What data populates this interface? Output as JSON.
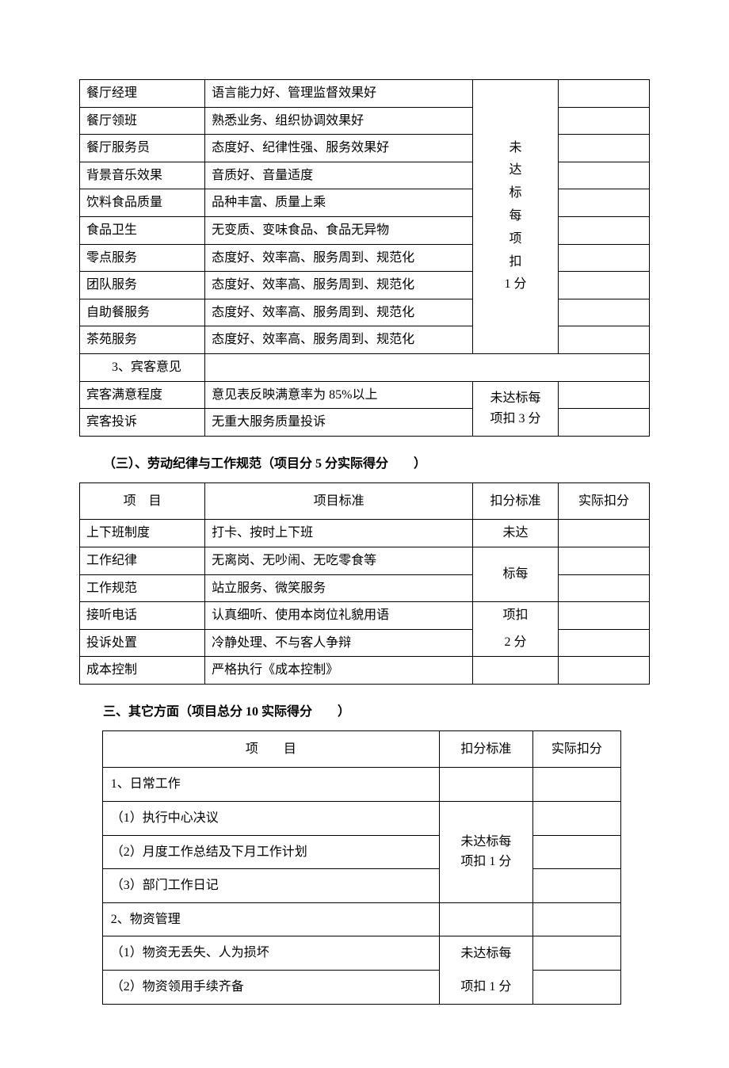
{
  "table1": {
    "rows": [
      {
        "item": "餐厅经理",
        "standard": "语言能力好、管理监督效果好"
      },
      {
        "item": "餐厅领班",
        "standard": "熟悉业务、组织协调效果好"
      },
      {
        "item": "餐厅服务员",
        "standard": "态度好、纪律性强、服务效果好"
      },
      {
        "item": "背景音乐效果",
        "standard": "音质好、音量适度"
      },
      {
        "item": "饮料食品质量",
        "standard": "品种丰富、质量上乘"
      },
      {
        "item": "食品卫生",
        "standard": "无变质、变味食品、食品无异物"
      },
      {
        "item": "零点服务",
        "standard": "态度好、效率高、服务周到、规范化"
      },
      {
        "item": "团队服务",
        "standard": "态度好、效率高、服务周到、规范化"
      },
      {
        "item": "自助餐服务",
        "standard": "态度好、效率高、服务周到、规范化"
      },
      {
        "item": "茶苑服务",
        "standard": "态度好、效率高、服务周到、规范化"
      }
    ],
    "deduct1": "未\n达\n标\n每\n项\n扣\n1 分",
    "section_row": "3、宾客意见",
    "rows2": [
      {
        "item": "宾客满意程度",
        "standard": "意见表反映满意率为 85%以上"
      },
      {
        "item": "宾客投诉",
        "standard": "无重大服务质量投诉"
      }
    ],
    "deduct2": "未达标每\n项扣 3 分"
  },
  "section2": {
    "title": "（三）、劳动纪律与工作规范（项目分 5 分实际得分　　）",
    "headers": {
      "item": "项　目",
      "standard": "项目标准",
      "deduct": "扣分标准",
      "actual": "实际扣分"
    },
    "rows": [
      {
        "item": "上下班制度",
        "standard": "打卡、按时上下班"
      },
      {
        "item": "工作纪律",
        "standard": "无离岗、无吵闹、无吃零食等"
      },
      {
        "item": "工作规范",
        "standard": "站立服务、微笑服务"
      },
      {
        "item": "接听电话",
        "standard": "认真细听、使用本岗位礼貌用语"
      },
      {
        "item": "投诉处置",
        "standard": "冷静处理、不与客人争辩"
      },
      {
        "item": "成本控制",
        "standard": "严格执行《成本控制》"
      }
    ],
    "deduct_lines": [
      "未达",
      "标每",
      "项扣",
      "2 分"
    ]
  },
  "section3": {
    "title": "三、其它方面（项目总分 10 实际得分　　）",
    "headers": {
      "item": "项　　目",
      "deduct": "扣分标准",
      "actual": "实际扣分"
    },
    "group1": "1、日常工作",
    "g1rows": [
      "（1）执行中心决议",
      "（2）月度工作总结及下月工作计划",
      "（3）部门工作日记"
    ],
    "deduct1": "未达标每\n项扣 1 分",
    "group2": "2、物资管理",
    "g2rows": [
      "（1）物资无丢失、人为损坏",
      "（2）物资领用手续齐备"
    ],
    "deduct2_lines": [
      "未达标每",
      "项扣 1 分"
    ]
  }
}
